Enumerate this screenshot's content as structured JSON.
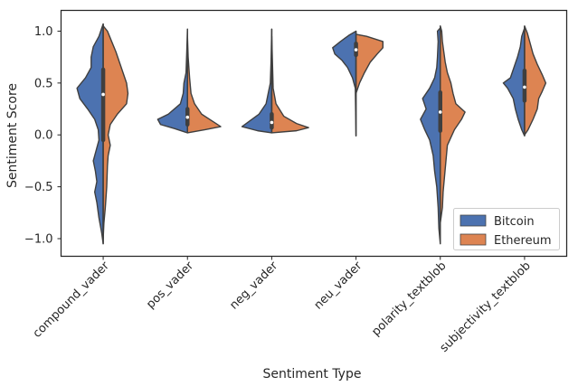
{
  "chart_data": {
    "type": "violin",
    "xlabel": "Sentiment Type",
    "ylabel": "Sentiment Score",
    "ylim": [
      -1.17,
      1.2
    ],
    "yticks": [
      -1.0,
      -0.5,
      0.0,
      0.5,
      1.0
    ],
    "ytick_labels": [
      "−1.0",
      "−0.5",
      "0.0",
      "0.5",
      "1.0"
    ],
    "categories": [
      "compound_vader",
      "pos_vader",
      "neg_vader",
      "neu_vader",
      "polarity_textblob",
      "subjectivity_textblob"
    ],
    "grid": false,
    "legend_position": "lower-right",
    "series": [
      {
        "name": "Bitcoin",
        "color": "#4c72b0",
        "violins": [
          {
            "range": [
              -1.05,
              1.07
            ],
            "median": 0.39,
            "q1": -0.05,
            "q3": 0.63,
            "profile": [
              [
                -1.05,
                0.0
              ],
              [
                -0.95,
                0.02
              ],
              [
                -0.8,
                0.06
              ],
              [
                -0.65,
                0.09
              ],
              [
                -0.55,
                0.12
              ],
              [
                -0.45,
                0.09
              ],
              [
                -0.35,
                0.11
              ],
              [
                -0.25,
                0.14
              ],
              [
                -0.15,
                0.1
              ],
              [
                -0.05,
                0.06
              ],
              [
                0.05,
                0.07
              ],
              [
                0.15,
                0.12
              ],
              [
                0.25,
                0.22
              ],
              [
                0.35,
                0.33
              ],
              [
                0.45,
                0.37
              ],
              [
                0.55,
                0.25
              ],
              [
                0.65,
                0.17
              ],
              [
                0.75,
                0.17
              ],
              [
                0.85,
                0.14
              ],
              [
                0.95,
                0.06
              ],
              [
                1.03,
                0.02
              ],
              [
                1.07,
                0.0
              ]
            ]
          },
          {
            "range": [
              0.02,
              1.02
            ],
            "median": 0.17,
            "q1": 0.1,
            "q3": 0.25,
            "profile": [
              [
                0.02,
                0.0
              ],
              [
                0.06,
                0.18
              ],
              [
                0.1,
                0.38
              ],
              [
                0.15,
                0.42
              ],
              [
                0.2,
                0.27
              ],
              [
                0.3,
                0.1
              ],
              [
                0.4,
                0.06
              ],
              [
                0.5,
                0.05
              ],
              [
                0.6,
                0.02
              ],
              [
                0.8,
                0.01
              ],
              [
                1.02,
                0.0
              ]
            ]
          },
          {
            "range": [
              0.02,
              1.02
            ],
            "median": 0.12,
            "q1": 0.07,
            "q3": 0.2,
            "profile": [
              [
                0.02,
                0.0
              ],
              [
                0.04,
                0.2
              ],
              [
                0.08,
                0.42
              ],
              [
                0.13,
                0.32
              ],
              [
                0.2,
                0.18
              ],
              [
                0.3,
                0.08
              ],
              [
                0.4,
                0.05
              ],
              [
                0.5,
                0.02
              ],
              [
                0.7,
                0.01
              ],
              [
                1.02,
                0.0
              ]
            ]
          },
          {
            "range": [
              -0.01,
              1.0
            ],
            "median": 0.82,
            "q1": 0.77,
            "q3": 0.88,
            "profile": [
              [
                -0.01,
                0.0
              ],
              [
                0.45,
                0.01
              ],
              [
                0.55,
                0.05
              ],
              [
                0.65,
                0.12
              ],
              [
                0.72,
                0.2
              ],
              [
                0.78,
                0.3
              ],
              [
                0.84,
                0.33
              ],
              [
                0.9,
                0.22
              ],
              [
                0.96,
                0.1
              ],
              [
                1.0,
                0.0
              ]
            ]
          },
          {
            "range": [
              -1.05,
              1.03
            ],
            "median": 0.22,
            "q1": 0.04,
            "q3": 0.41,
            "profile": [
              [
                -1.05,
                0.0
              ],
              [
                -0.9,
                0.02
              ],
              [
                -0.7,
                0.03
              ],
              [
                -0.5,
                0.05
              ],
              [
                -0.35,
                0.08
              ],
              [
                -0.2,
                0.1
              ],
              [
                -0.05,
                0.15
              ],
              [
                0.05,
                0.22
              ],
              [
                0.15,
                0.28
              ],
              [
                0.25,
                0.2
              ],
              [
                0.35,
                0.25
              ],
              [
                0.45,
                0.15
              ],
              [
                0.55,
                0.08
              ],
              [
                0.65,
                0.05
              ],
              [
                0.75,
                0.04
              ],
              [
                0.9,
                0.03
              ],
              [
                1.0,
                0.04
              ],
              [
                1.03,
                0.0
              ]
            ]
          },
          {
            "range": [
              -0.01,
              1.03
            ],
            "median": 0.46,
            "q1": 0.33,
            "q3": 0.62,
            "profile": [
              [
                -0.01,
                0.0
              ],
              [
                0.05,
                0.04
              ],
              [
                0.15,
                0.09
              ],
              [
                0.25,
                0.13
              ],
              [
                0.35,
                0.16
              ],
              [
                0.45,
                0.24
              ],
              [
                0.5,
                0.3
              ],
              [
                0.55,
                0.2
              ],
              [
                0.65,
                0.15
              ],
              [
                0.75,
                0.1
              ],
              [
                0.85,
                0.06
              ],
              [
                0.95,
                0.04
              ],
              [
                1.03,
                0.0
              ]
            ]
          }
        ]
      },
      {
        "name": "Ethereum",
        "color": "#dd8452",
        "violins": [
          {
            "range": [
              -1.0,
              1.05
            ],
            "median": 0.39,
            "q1": -0.05,
            "q3": 0.63,
            "profile": [
              [
                -1.0,
                0.0
              ],
              [
                -0.85,
                0.01
              ],
              [
                -0.7,
                0.03
              ],
              [
                -0.5,
                0.05
              ],
              [
                -0.3,
                0.06
              ],
              [
                -0.2,
                0.07
              ],
              [
                -0.1,
                0.1
              ],
              [
                0.0,
                0.07
              ],
              [
                0.1,
                0.1
              ],
              [
                0.2,
                0.2
              ],
              [
                0.3,
                0.33
              ],
              [
                0.4,
                0.35
              ],
              [
                0.5,
                0.33
              ],
              [
                0.6,
                0.28
              ],
              [
                0.7,
                0.23
              ],
              [
                0.8,
                0.18
              ],
              [
                0.9,
                0.12
              ],
              [
                1.0,
                0.06
              ],
              [
                1.05,
                0.0
              ]
            ]
          },
          {
            "range": [
              0.02,
              0.95
            ],
            "median": 0.17,
            "q1": 0.1,
            "q3": 0.25,
            "profile": [
              [
                0.02,
                0.0
              ],
              [
                0.05,
                0.25
              ],
              [
                0.08,
                0.47
              ],
              [
                0.12,
                0.38
              ],
              [
                0.2,
                0.2
              ],
              [
                0.3,
                0.1
              ],
              [
                0.4,
                0.05
              ],
              [
                0.55,
                0.03
              ],
              [
                0.75,
                0.01
              ],
              [
                0.95,
                0.0
              ]
            ]
          },
          {
            "range": [
              0.02,
              0.95
            ],
            "median": 0.12,
            "q1": 0.07,
            "q3": 0.2,
            "profile": [
              [
                0.02,
                0.0
              ],
              [
                0.04,
                0.35
              ],
              [
                0.07,
                0.52
              ],
              [
                0.11,
                0.35
              ],
              [
                0.18,
                0.17
              ],
              [
                0.3,
                0.06
              ],
              [
                0.45,
                0.02
              ],
              [
                0.95,
                0.0
              ]
            ]
          },
          {
            "range": [
              0.4,
              0.97
            ],
            "median": 0.82,
            "q1": 0.77,
            "q3": 0.88,
            "profile": [
              [
                0.4,
                0.0
              ],
              [
                0.5,
                0.05
              ],
              [
                0.6,
                0.12
              ],
              [
                0.7,
                0.2
              ],
              [
                0.78,
                0.3
              ],
              [
                0.84,
                0.38
              ],
              [
                0.9,
                0.38
              ],
              [
                0.95,
                0.15
              ],
              [
                0.97,
                0.0
              ]
            ]
          },
          {
            "range": [
              -0.85,
              1.05
            ],
            "median": 0.22,
            "q1": 0.04,
            "q3": 0.41,
            "profile": [
              [
                -0.85,
                0.0
              ],
              [
                -0.7,
                0.03
              ],
              [
                -0.55,
                0.04
              ],
              [
                -0.4,
                0.06
              ],
              [
                -0.25,
                0.08
              ],
              [
                -0.1,
                0.1
              ],
              [
                0.05,
                0.2
              ],
              [
                0.15,
                0.3
              ],
              [
                0.22,
                0.35
              ],
              [
                0.3,
                0.22
              ],
              [
                0.4,
                0.18
              ],
              [
                0.5,
                0.15
              ],
              [
                0.6,
                0.1
              ],
              [
                0.7,
                0.07
              ],
              [
                0.8,
                0.05
              ],
              [
                0.9,
                0.03
              ],
              [
                1.0,
                0.02
              ],
              [
                1.05,
                0.0
              ]
            ]
          },
          {
            "range": [
              0.0,
              1.05
            ],
            "median": 0.46,
            "q1": 0.33,
            "q3": 0.62,
            "profile": [
              [
                0.0,
                0.0
              ],
              [
                0.05,
                0.05
              ],
              [
                0.15,
                0.12
              ],
              [
                0.25,
                0.18
              ],
              [
                0.35,
                0.2
              ],
              [
                0.42,
                0.25
              ],
              [
                0.5,
                0.3
              ],
              [
                0.58,
                0.25
              ],
              [
                0.68,
                0.18
              ],
              [
                0.78,
                0.12
              ],
              [
                0.88,
                0.08
              ],
              [
                0.98,
                0.04
              ],
              [
                1.05,
                0.0
              ]
            ]
          }
        ]
      }
    ]
  }
}
